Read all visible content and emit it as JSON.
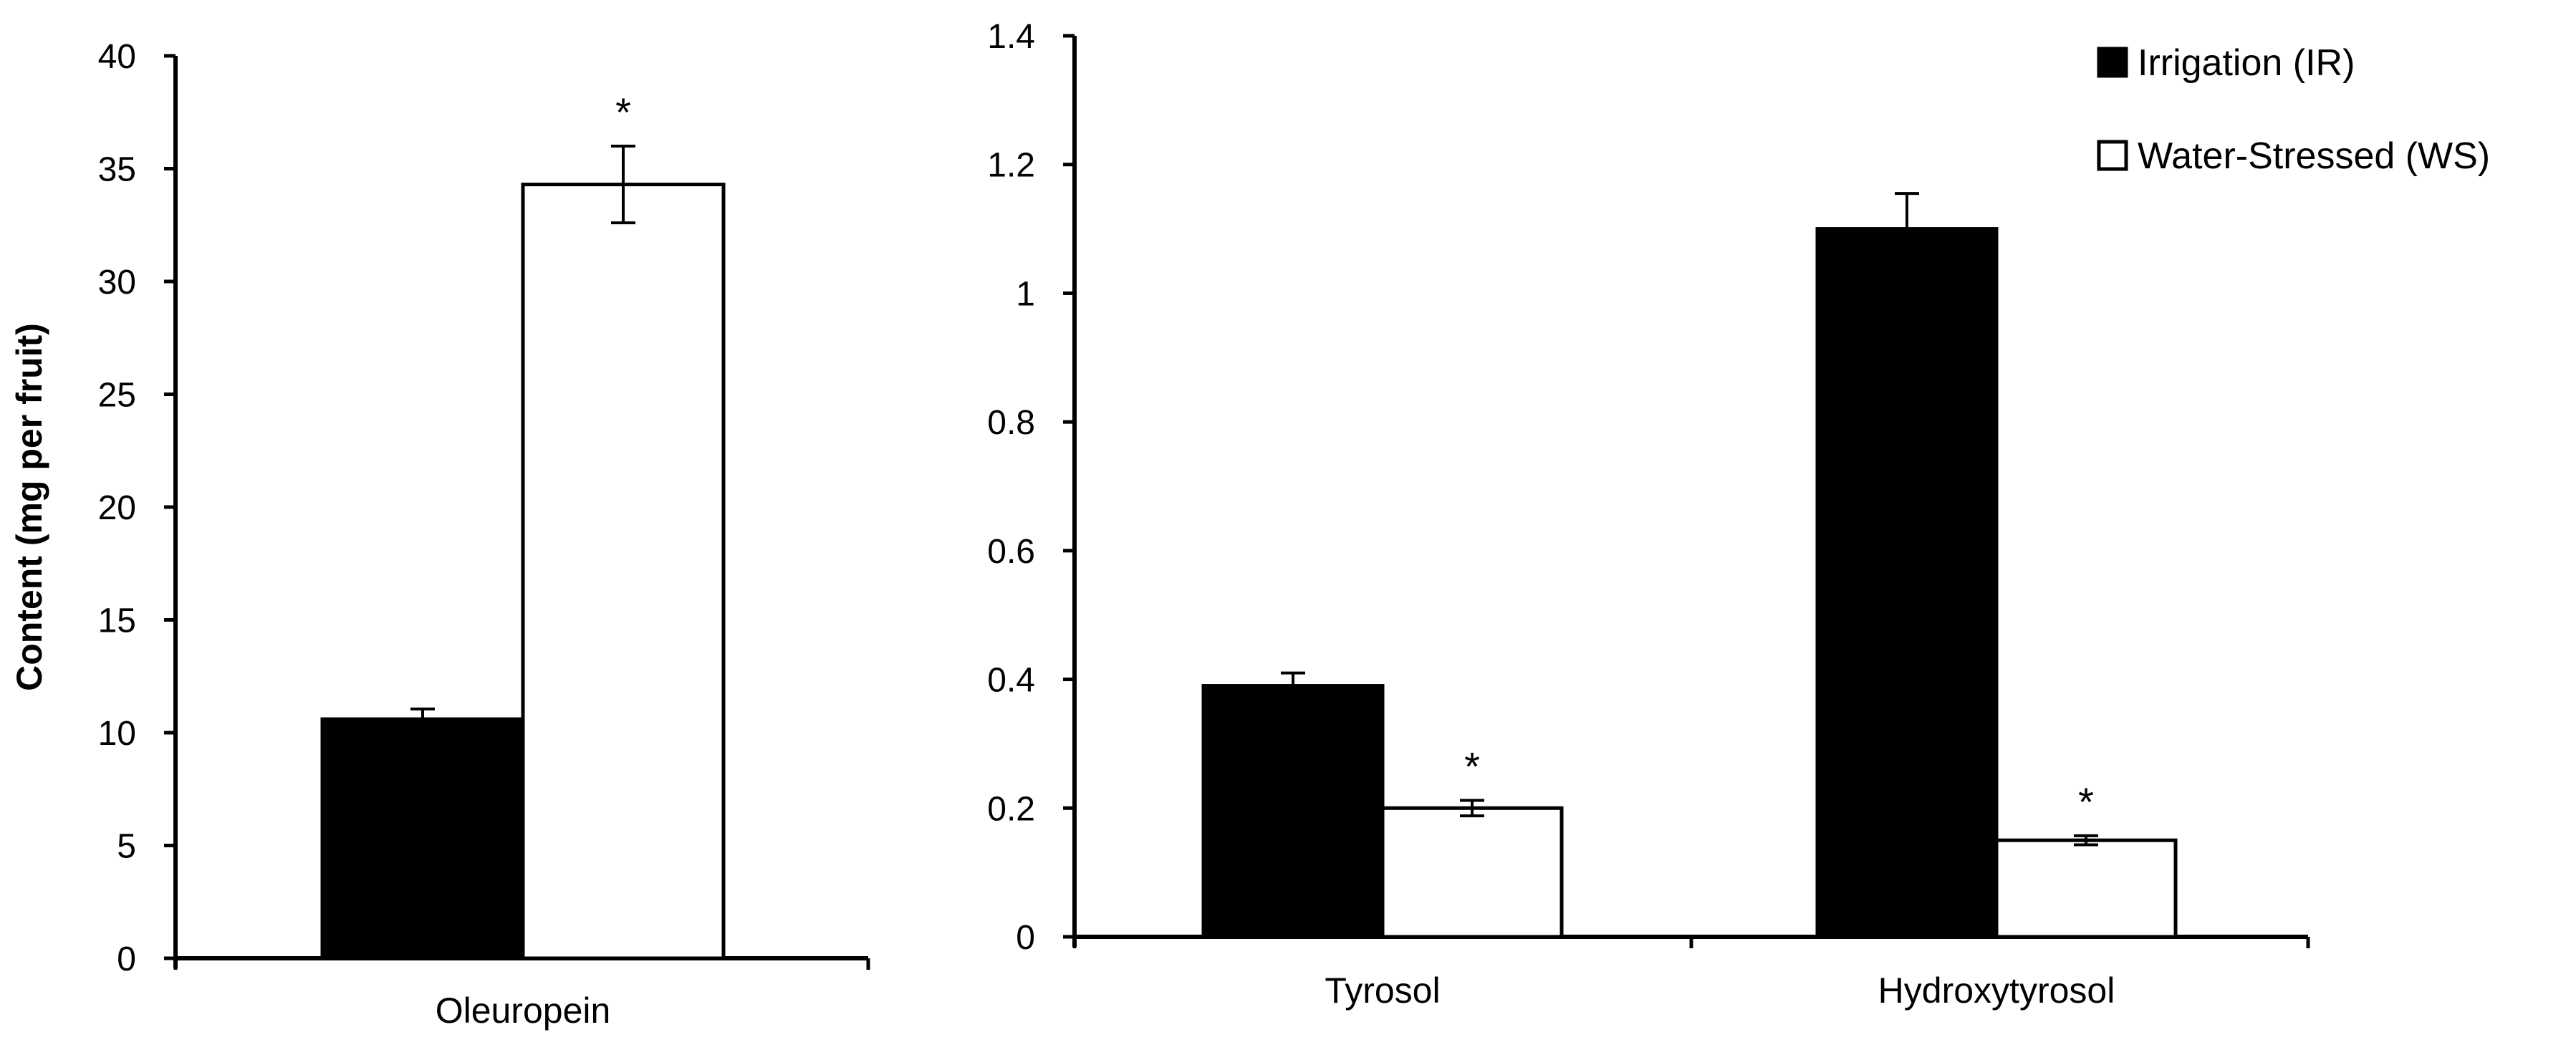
{
  "chart_data": [
    {
      "type": "bar",
      "ylabel": "Content (mg per fruit)",
      "ylim": [
        0,
        40
      ],
      "yticks": [
        0,
        5,
        10,
        15,
        20,
        25,
        30,
        35,
        40
      ],
      "categories": [
        "Oleuropein"
      ],
      "series": [
        {
          "name": "Irrigation (IR)",
          "color": "#000000",
          "values": [
            10.6
          ],
          "errors": [
            0.45
          ]
        },
        {
          "name": "Water-Stressed (WS)",
          "color": "#ffffff",
          "values": [
            34.3
          ],
          "errors": [
            1.7
          ]
        }
      ],
      "annotations": [
        {
          "category": "Oleuropein",
          "series": 1,
          "text": "*"
        }
      ]
    },
    {
      "type": "bar",
      "ylim": [
        0,
        1.4
      ],
      "yticks": [
        "0",
        "0.2",
        "0.4",
        "0.6",
        "0.8",
        "1",
        "1.2",
        "1.4"
      ],
      "categories": [
        "Tyrosol",
        "Hydroxytyrosol"
      ],
      "series": [
        {
          "name": "Irrigation (IR)",
          "color": "#000000",
          "values": [
            0.39,
            1.1
          ],
          "errors": [
            0.02,
            0.055
          ]
        },
        {
          "name": "Water-Stressed (WS)",
          "color": "#ffffff",
          "values": [
            0.2,
            0.15
          ],
          "errors": [
            0.012,
            0.007
          ]
        }
      ],
      "annotations": [
        {
          "category": "Tyrosol",
          "series": 1,
          "text": "*"
        },
        {
          "category": "Hydroxytyrosol",
          "series": 1,
          "text": "*"
        }
      ],
      "legend": {
        "position": "top-right",
        "entries": [
          "Irrigation (IR)",
          "Water-Stressed (WS)"
        ]
      }
    }
  ]
}
